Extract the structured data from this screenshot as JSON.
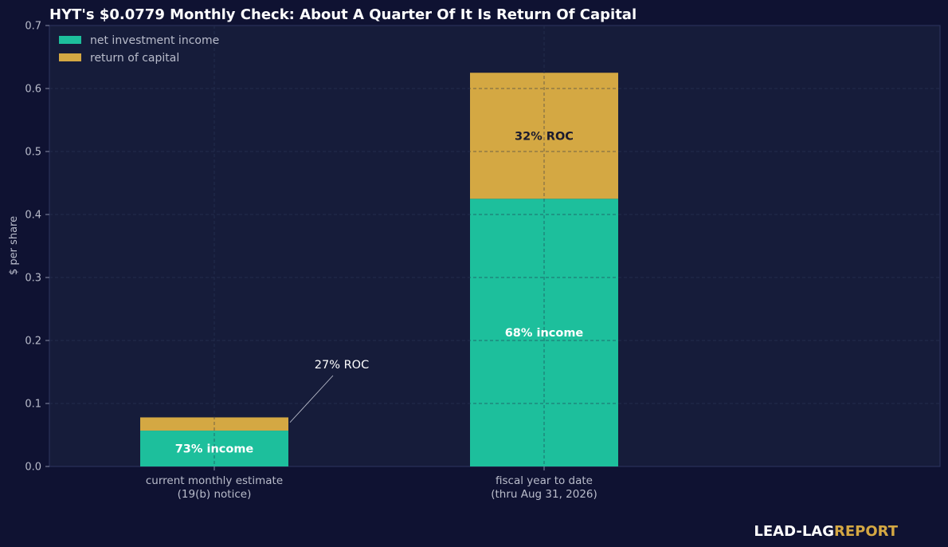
{
  "chart_data": {
    "type": "bar",
    "stacked": true,
    "title": "HYT's $0.0779 Monthly Check: About A Quarter Of It Is Return Of Capital",
    "ylabel": "$ per share",
    "xlabel": "",
    "ylim": [
      0,
      0.7
    ],
    "yticks": [
      0.0,
      0.1,
      0.2,
      0.3,
      0.4,
      0.5,
      0.6,
      0.7
    ],
    "ytick_labels": [
      "0.0",
      "0.1",
      "0.2",
      "0.3",
      "0.4",
      "0.5",
      "0.6",
      "0.7"
    ],
    "grid": true,
    "legend_position": "top-left",
    "categories": [
      [
        "current monthly estimate",
        "(19(b) notice)"
      ],
      [
        "fiscal year to date",
        "(thru Aug 31, 2026)"
      ]
    ],
    "series": [
      {
        "name": "net investment income",
        "color": "#1dbf9c",
        "values": [
          0.0569,
          0.425
        ],
        "labels": [
          "73% income",
          "68% income"
        ],
        "label_color": "#ffffff"
      },
      {
        "name": "return of capital",
        "color": "#d4a843",
        "values": [
          0.021,
          0.2
        ],
        "labels": [
          "",
          "32% ROC"
        ],
        "label_color": "#1a1a2e"
      }
    ],
    "annotations": [
      {
        "text": "27% ROC",
        "category_index": 0,
        "series_index": 1
      }
    ]
  },
  "brand": {
    "part1": "LEAD-LAG",
    "part2": "REPORT",
    "color1": "#ffffff",
    "color2": "#d4a843"
  },
  "colors": {
    "background": "#0f1232",
    "plot_background": "#161c3a",
    "grid": "#2a3154",
    "axis": "#3a4166"
  }
}
